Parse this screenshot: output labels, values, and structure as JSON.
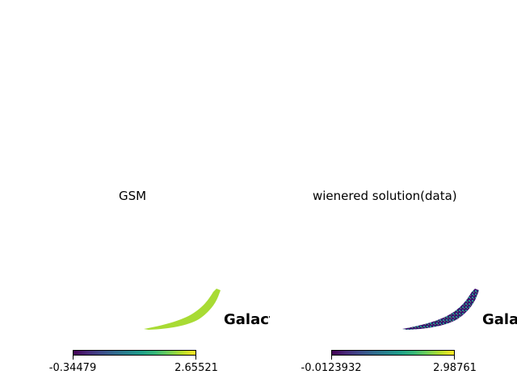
{
  "chart_data": [
    {
      "type": "heatmap",
      "projection": "mollweide-partial",
      "title": "GSM",
      "coordinate_label": "Galactic",
      "colormap": "viridis",
      "colorbar": {
        "min_label": "-0.34479",
        "max_label": "2.65521"
      },
      "vmin": -0.34479,
      "vmax": 2.65521,
      "fill_color": "#a8db34"
    },
    {
      "type": "heatmap",
      "projection": "mollweide-partial",
      "title": "wienered solution(data)",
      "coordinate_label": "Galactic",
      "colormap": "viridis",
      "colorbar": {
        "min_label": "-0.0123932",
        "max_label": "2.98761"
      },
      "vmin": -0.0123932,
      "vmax": 2.98761,
      "fill_color": "#3b0f70"
    }
  ]
}
